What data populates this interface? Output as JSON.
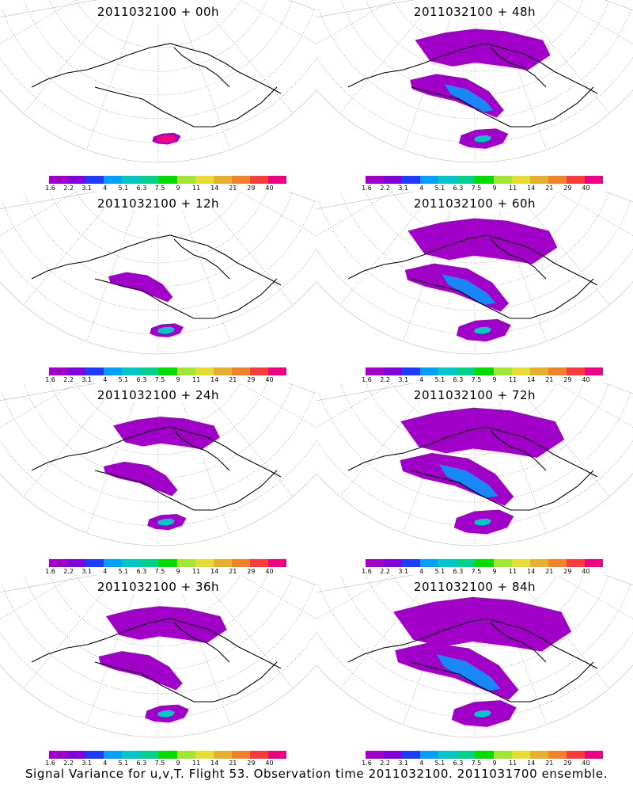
{
  "panels": [
    {
      "title": "2011032100 + 00h",
      "lead_hours": 0
    },
    {
      "title": "2011032100 + 48h",
      "lead_hours": 48
    },
    {
      "title": "2011032100 + 12h",
      "lead_hours": 12
    },
    {
      "title": "2011032100 + 60h",
      "lead_hours": 60
    },
    {
      "title": "2011032100 + 24h",
      "lead_hours": 24
    },
    {
      "title": "2011032100 + 72h",
      "lead_hours": 72
    },
    {
      "title": "2011032100 + 36h",
      "lead_hours": 36
    },
    {
      "title": "2011032100 + 84h",
      "lead_hours": 84
    }
  ],
  "colorbar": {
    "colors": [
      "#a000c8",
      "#8200dc",
      "#1e3cff",
      "#00a0ff",
      "#00c8c8",
      "#00d28c",
      "#00dc00",
      "#a0e632",
      "#e6dc32",
      "#e6af2d",
      "#f08228",
      "#fa3c3c",
      "#f00082"
    ],
    "tick_labels": [
      "1.6",
      "2.2",
      "3.1",
      "4",
      "5.1",
      "6.3",
      "7.5",
      "9",
      "11",
      "14",
      "21",
      "29",
      "40"
    ]
  },
  "caption": "Signal Variance for u,v,T. Flight 53. Observation time 2011032100. 2011031700 ensemble."
}
